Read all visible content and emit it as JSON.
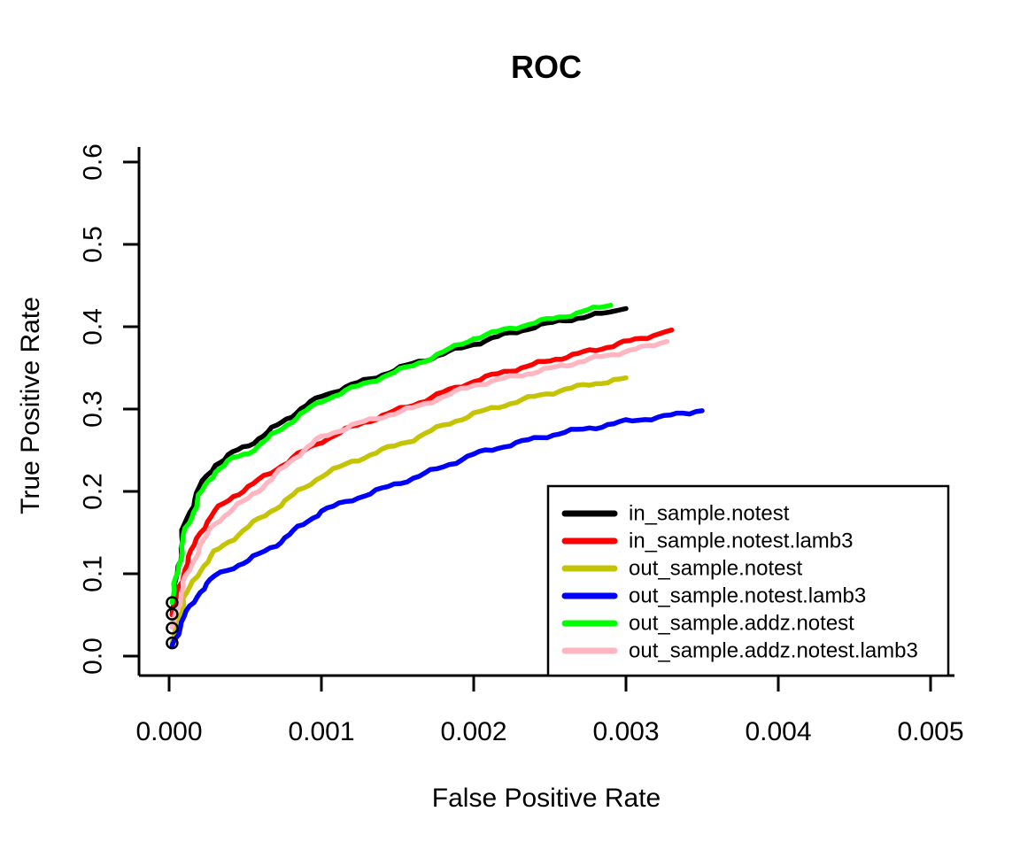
{
  "title": "ROC",
  "chart_data": {
    "type": "line",
    "title": "ROC",
    "xlabel": "False Positive Rate",
    "ylabel": "True Positive Rate",
    "xlim": [
      0,
      0.005
    ],
    "ylim": [
      0,
      0.6
    ],
    "x_ticks": {
      "values": [
        0,
        0.001,
        0.002,
        0.003,
        0.004,
        0.005
      ],
      "labels": [
        "0.000",
        "0.001",
        "0.002",
        "0.003",
        "0.004",
        "0.005"
      ]
    },
    "y_ticks": {
      "values": [
        0,
        0.1,
        0.2,
        0.3,
        0.4,
        0.5,
        0.6
      ],
      "labels": [
        "0.0",
        "0.1",
        "0.2",
        "0.3",
        "0.4",
        "0.5",
        "0.6"
      ]
    },
    "grid": false,
    "box_style": "L-axes",
    "legend_position": "bottom-right-inside",
    "series": [
      {
        "name": "in_sample.notest",
        "color": "#000000",
        "x": [
          2e-05,
          0.0001,
          0.0002,
          0.0003,
          0.00042,
          0.00052,
          0.00065,
          0.0008,
          0.001,
          0.0012,
          0.0014,
          0.0016,
          0.0018,
          0.002,
          0.0022,
          0.0024,
          0.0026,
          0.0028,
          0.003
        ],
        "y": [
          0.051,
          0.16,
          0.205,
          0.232,
          0.247,
          0.256,
          0.272,
          0.292,
          0.316,
          0.329,
          0.342,
          0.355,
          0.367,
          0.379,
          0.39,
          0.4,
          0.408,
          0.414,
          0.422
        ]
      },
      {
        "name": "in_sample.notest.lamb3",
        "color": "#FF0000",
        "x": [
          2e-05,
          0.0001,
          0.0002,
          0.0003,
          0.00042,
          0.00052,
          0.0007,
          0.00085,
          0.001,
          0.0012,
          0.0014,
          0.0016,
          0.0018,
          0.002,
          0.0022,
          0.0025,
          0.0028,
          0.0031,
          0.0033
        ],
        "y": [
          0.05,
          0.105,
          0.15,
          0.176,
          0.194,
          0.205,
          0.227,
          0.245,
          0.261,
          0.278,
          0.292,
          0.305,
          0.32,
          0.334,
          0.345,
          0.359,
          0.372,
          0.386,
          0.396
        ]
      },
      {
        "name": "out_sample.notest",
        "color": "#C4C404",
        "x": [
          2e-05,
          0.0001,
          0.0002,
          0.0003,
          0.00042,
          0.00052,
          0.0007,
          0.00085,
          0.001,
          0.0012,
          0.0014,
          0.0016,
          0.0018,
          0.002,
          0.0022,
          0.0024,
          0.0026,
          0.0028,
          0.003
        ],
        "y": [
          0.016,
          0.07,
          0.104,
          0.126,
          0.143,
          0.157,
          0.18,
          0.2,
          0.219,
          0.236,
          0.25,
          0.263,
          0.28,
          0.294,
          0.305,
          0.315,
          0.324,
          0.331,
          0.338
        ]
      },
      {
        "name": "out_sample.notest.lamb3",
        "color": "#0000FF",
        "x": [
          2e-05,
          0.0001,
          0.0002,
          0.0003,
          0.00042,
          0.00052,
          0.0007,
          0.00085,
          0.001,
          0.0012,
          0.0014,
          0.0016,
          0.0018,
          0.002,
          0.0022,
          0.0024,
          0.0026,
          0.0028,
          0.003,
          0.00325,
          0.0035
        ],
        "y": [
          0.013,
          0.048,
          0.078,
          0.097,
          0.108,
          0.116,
          0.135,
          0.156,
          0.176,
          0.19,
          0.203,
          0.216,
          0.23,
          0.245,
          0.255,
          0.264,
          0.272,
          0.278,
          0.285,
          0.291,
          0.298
        ]
      },
      {
        "name": "out_sample.addz.notest",
        "color": "#00FF00",
        "x": [
          2e-05,
          0.0001,
          0.0002,
          0.0003,
          0.00042,
          0.00052,
          0.00065,
          0.0008,
          0.001,
          0.0012,
          0.0014,
          0.0016,
          0.0018,
          0.002,
          0.0022,
          0.0024,
          0.0026,
          0.00275,
          0.0029
        ],
        "y": [
          0.065,
          0.148,
          0.195,
          0.224,
          0.24,
          0.247,
          0.264,
          0.285,
          0.31,
          0.325,
          0.339,
          0.353,
          0.369,
          0.386,
          0.396,
          0.405,
          0.413,
          0.42,
          0.426
        ]
      },
      {
        "name": "out_sample.addz.notest.lamb3",
        "color": "#FFB6C1",
        "x": [
          2e-05,
          0.0001,
          0.0002,
          0.0003,
          0.00042,
          0.00052,
          0.0007,
          0.00085,
          0.001,
          0.0012,
          0.0014,
          0.0016,
          0.0018,
          0.002,
          0.0022,
          0.0025,
          0.0028,
          0.0031,
          0.00327
        ],
        "y": [
          0.035,
          0.09,
          0.133,
          0.16,
          0.18,
          0.191,
          0.22,
          0.245,
          0.266,
          0.28,
          0.291,
          0.301,
          0.315,
          0.329,
          0.337,
          0.349,
          0.362,
          0.374,
          0.382
        ]
      }
    ],
    "start_markers": [
      {
        "x": 2e-05,
        "y": 0.065
      },
      {
        "x": 2e-05,
        "y": 0.051
      },
      {
        "x": 2e-05,
        "y": 0.034
      },
      {
        "x": 2e-05,
        "y": 0.016
      }
    ],
    "legend_entries": [
      {
        "label": "in_sample.notest",
        "color": "#000000"
      },
      {
        "label": "in_sample.notest.lamb3",
        "color": "#FF0000"
      },
      {
        "label": "out_sample.notest",
        "color": "#C4C404"
      },
      {
        "label": "out_sample.notest.lamb3",
        "color": "#0000FF"
      },
      {
        "label": "out_sample.addz.notest",
        "color": "#00FF00"
      },
      {
        "label": "out_sample.addz.notest.lamb3",
        "color": "#FFB6C1"
      }
    ]
  },
  "colors": {
    "background": "#FFFFFF",
    "axis": "#000000",
    "legend_border": "#000000"
  }
}
